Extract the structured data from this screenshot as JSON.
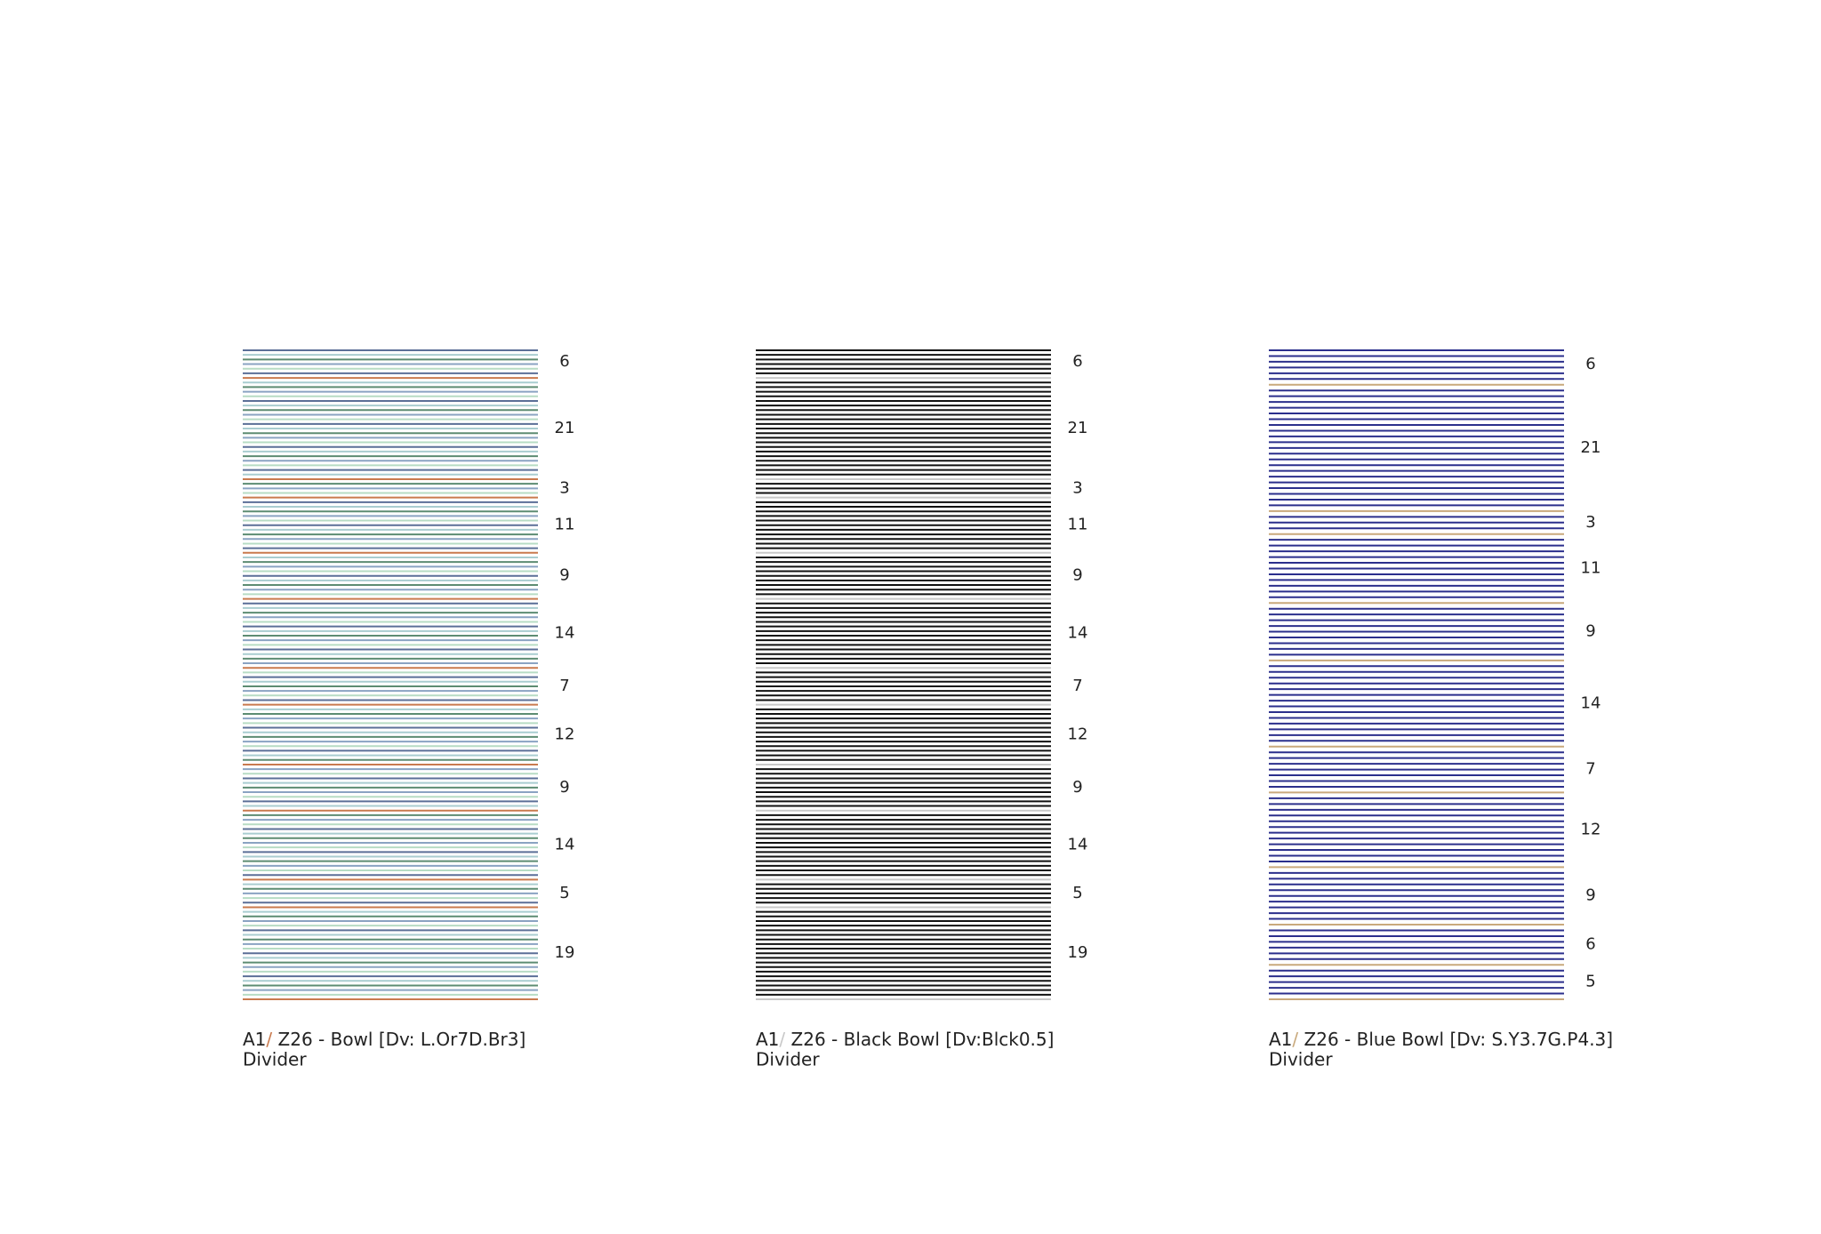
{
  "panels": [
    {
      "code": "A1",
      "slash": "/",
      "name": " Z26 - Bowl [Dv: L.Or7D.Br3]",
      "subtitle": "Divider",
      "stripe_colors": [
        "#5b6f97",
        "#a9cdd0",
        "#5d8c72",
        "#8aa3c2",
        "#b7dcc4"
      ],
      "divider_color": "#c97a4e",
      "groups": [
        6,
        21,
        3,
        11,
        9,
        14,
        7,
        12,
        9,
        14,
        5,
        19
      ]
    },
    {
      "code": "A1",
      "slash": "/",
      "name": " Z26 - Black Bowl [Dv:Blck0.5]",
      "subtitle": "Divider",
      "stripe_colors": [
        "#111111"
      ],
      "divider_color": "#c8c8c8",
      "groups": [
        6,
        21,
        3,
        11,
        9,
        14,
        7,
        12,
        9,
        14,
        5,
        19
      ]
    },
    {
      "code": "A1",
      "slash": "/",
      "name": " Z26 - Blue Bowl [Dv: S.Y3.7G.P4.3]",
      "subtitle": "Divider",
      "stripe_colors": [
        "#2b2f8c"
      ],
      "divider_color": "#c9a97c",
      "groups": [
        6,
        21,
        3,
        11,
        9,
        14,
        7,
        12,
        9,
        6,
        5
      ]
    }
  ]
}
